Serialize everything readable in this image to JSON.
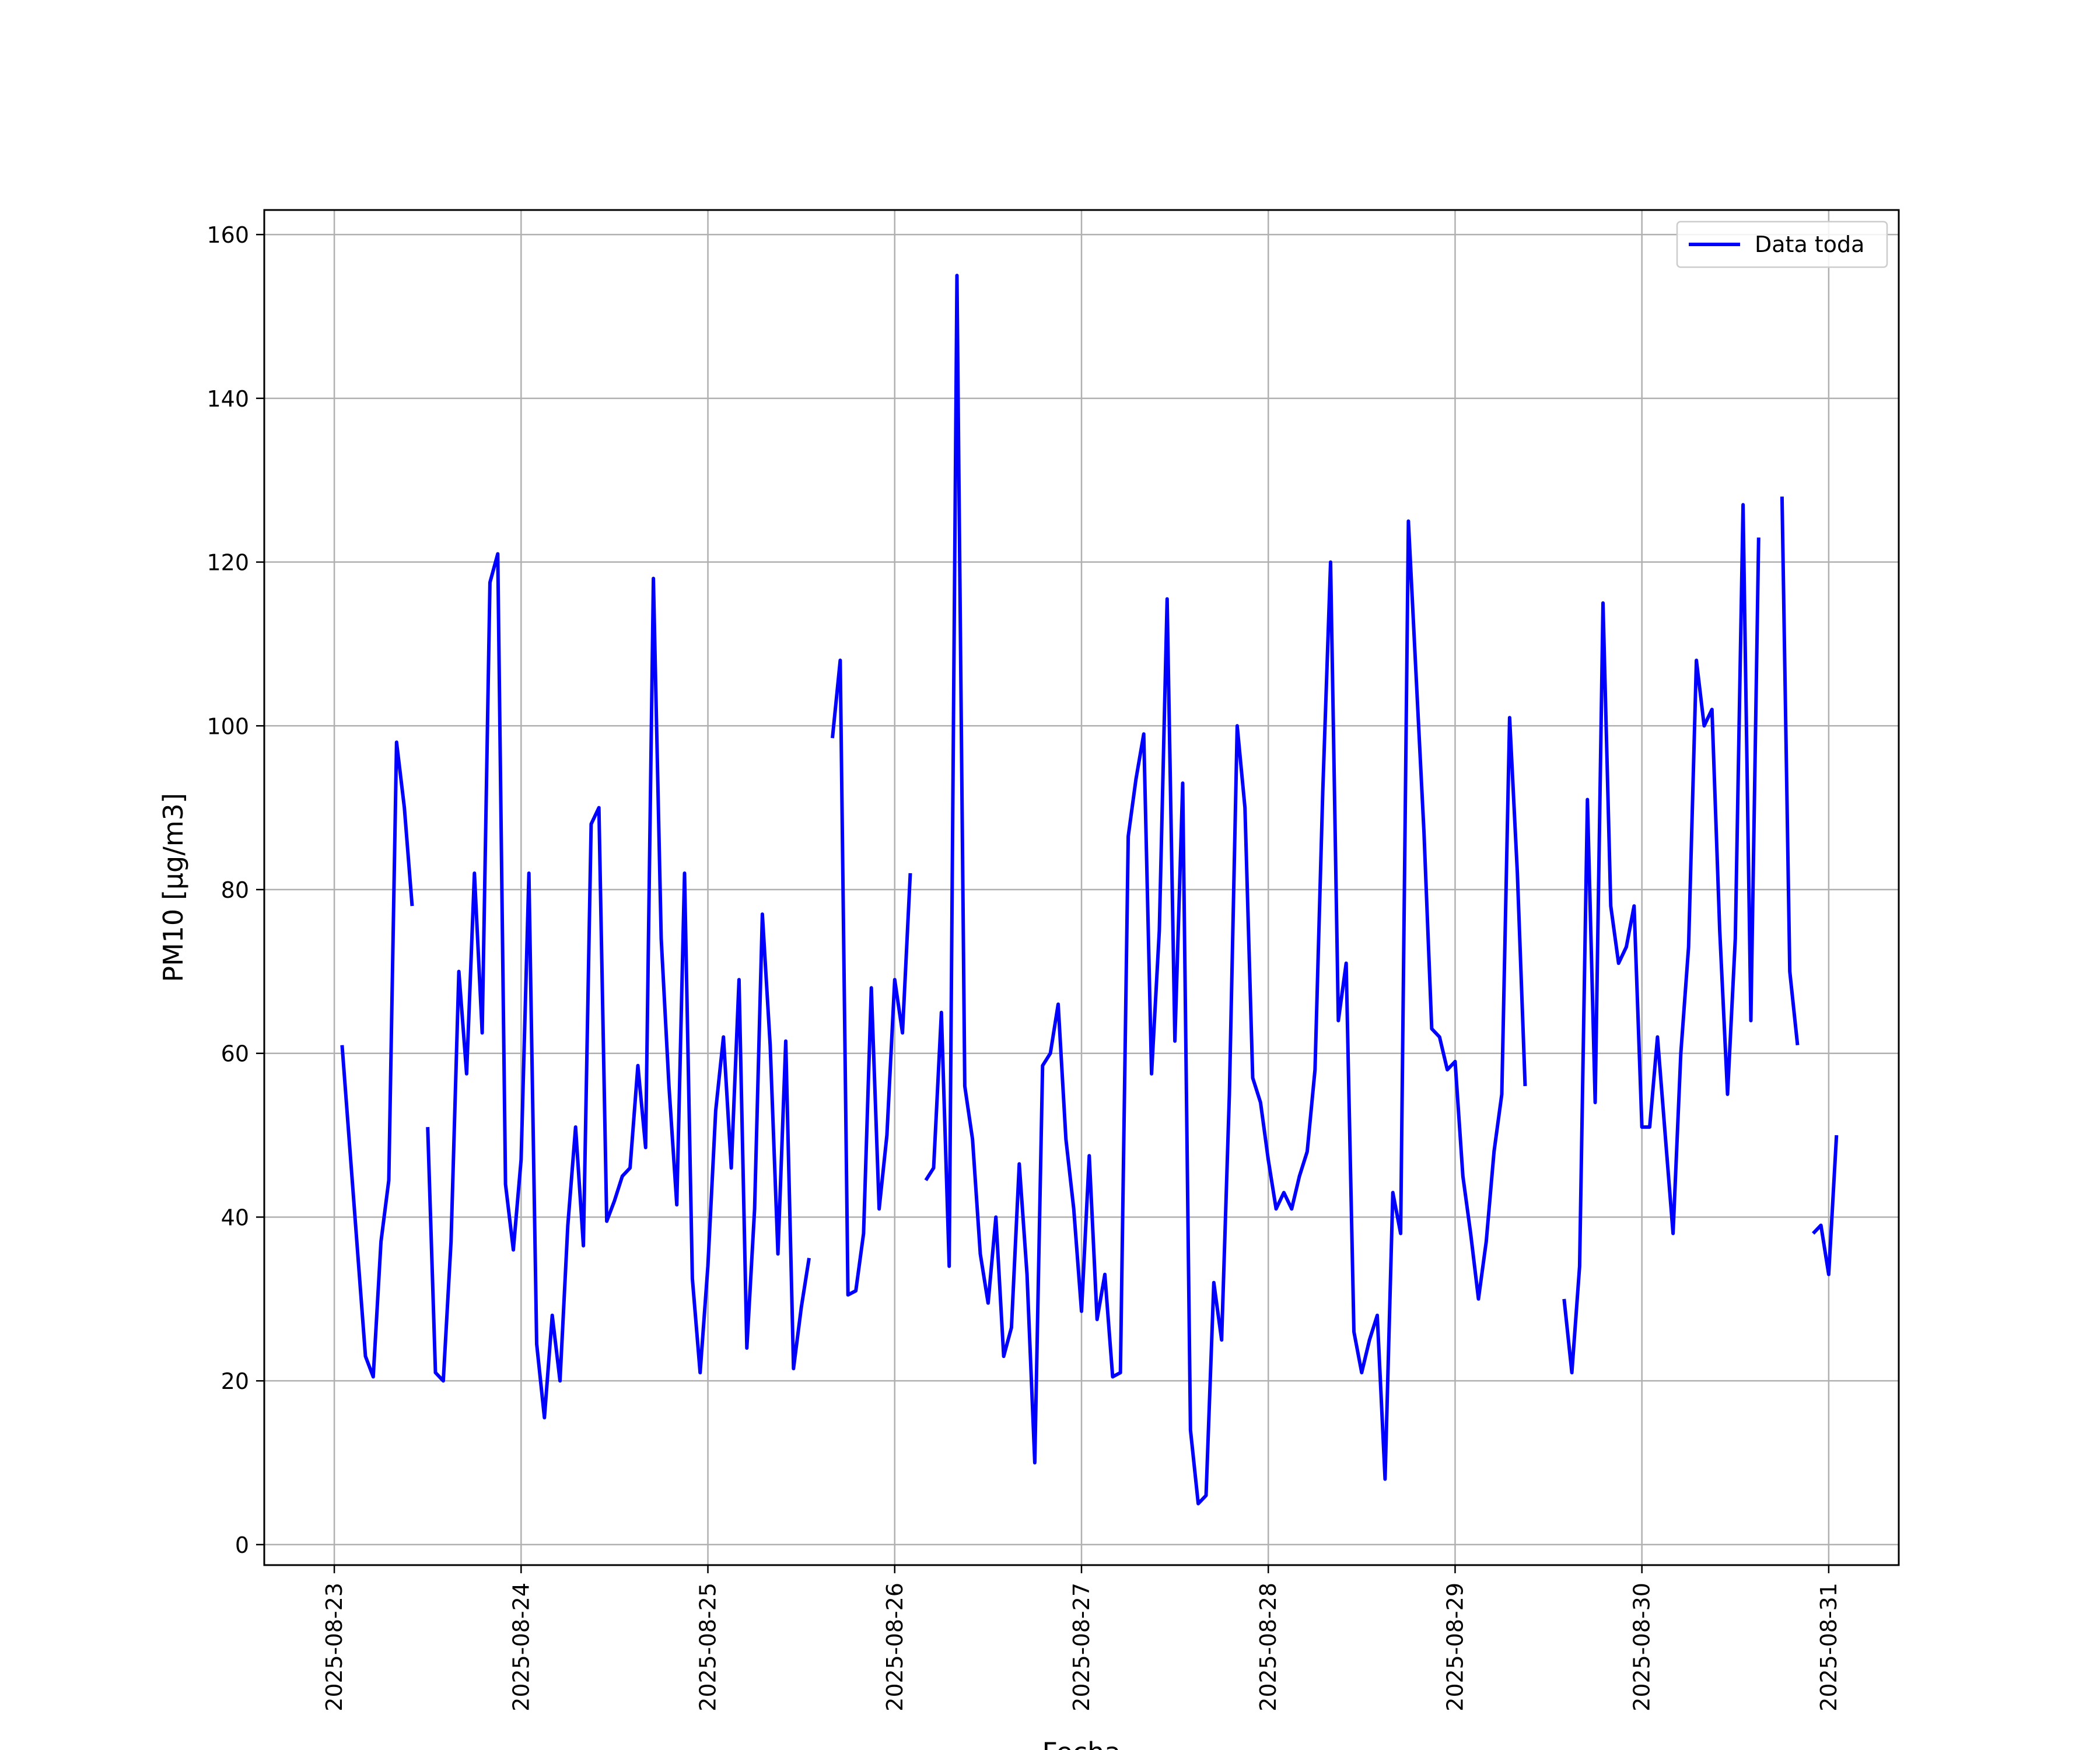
{
  "chart_data": {
    "type": "line",
    "title": "",
    "xlabel": "Fecha",
    "ylabel": "PM10 [μg/m3]",
    "xlim": [
      "2025-08-22 15:00",
      "2025-08-31 09:00"
    ],
    "ylim": [
      -2.5,
      163
    ],
    "grid": true,
    "legend_position": "top-right",
    "x_ticks": [
      "2025-08-23",
      "2025-08-24",
      "2025-08-25",
      "2025-08-26",
      "2025-08-27",
      "2025-08-28",
      "2025-08-29",
      "2025-08-30",
      "2025-08-31"
    ],
    "y_ticks": [
      0,
      20,
      40,
      60,
      80,
      100,
      120,
      140,
      160
    ],
    "colors": {
      "line": "#0000ff",
      "grid": "#b0b0b0"
    },
    "series": [
      {
        "name": "Data toda",
        "points": [
          [
            "2025-08-23 01:00",
            61
          ],
          [
            "2025-08-23 04:00",
            23
          ],
          [
            "2025-08-23 05:00",
            20.5
          ],
          [
            "2025-08-23 06:00",
            37
          ],
          [
            "2025-08-23 07:00",
            44.5
          ],
          [
            "2025-08-23 08:00",
            98
          ],
          [
            "2025-08-23 09:00",
            90
          ],
          [
            "2025-08-23 10:00",
            78
          ],
          [
            "2025-08-23 11:00",
            null
          ],
          [
            "2025-08-23 12:00",
            51
          ],
          [
            "2025-08-23 13:00",
            21
          ],
          [
            "2025-08-23 14:00",
            20
          ],
          [
            "2025-08-23 15:00",
            37
          ],
          [
            "2025-08-23 16:00",
            70
          ],
          [
            "2025-08-23 17:00",
            57.5
          ],
          [
            "2025-08-23 18:00",
            82
          ],
          [
            "2025-08-23 19:00",
            62.5
          ],
          [
            "2025-08-23 20:00",
            117.5
          ],
          [
            "2025-08-23 21:00",
            121
          ],
          [
            "2025-08-23 22:00",
            44
          ],
          [
            "2025-08-23 23:00",
            36
          ],
          [
            "2025-08-24 00:00",
            47
          ],
          [
            "2025-08-24 01:00",
            82
          ],
          [
            "2025-08-24 02:00",
            24.5
          ],
          [
            "2025-08-24 03:00",
            15.5
          ],
          [
            "2025-08-24 04:00",
            28
          ],
          [
            "2025-08-24 05:00",
            20
          ],
          [
            "2025-08-24 06:00",
            39
          ],
          [
            "2025-08-24 07:00",
            51
          ],
          [
            "2025-08-24 08:00",
            36.5
          ],
          [
            "2025-08-24 09:00",
            88
          ],
          [
            "2025-08-24 10:00",
            90
          ],
          [
            "2025-08-24 11:00",
            39.5
          ],
          [
            "2025-08-24 12:00",
            42
          ],
          [
            "2025-08-24 13:00",
            45
          ],
          [
            "2025-08-24 14:00",
            46
          ],
          [
            "2025-08-24 15:00",
            58.5
          ],
          [
            "2025-08-24 16:00",
            48.5
          ],
          [
            "2025-08-24 17:00",
            118
          ],
          [
            "2025-08-24 18:00",
            74
          ],
          [
            "2025-08-24 19:00",
            56
          ],
          [
            "2025-08-24 20:00",
            41.5
          ],
          [
            "2025-08-24 21:00",
            82
          ],
          [
            "2025-08-24 22:00",
            32.5
          ],
          [
            "2025-08-24 23:00",
            21
          ],
          [
            "2025-08-25 00:00",
            34
          ],
          [
            "2025-08-25 01:00",
            53
          ],
          [
            "2025-08-25 02:00",
            62
          ],
          [
            "2025-08-25 03:00",
            46
          ],
          [
            "2025-08-25 04:00",
            69
          ],
          [
            "2025-08-25 05:00",
            24
          ],
          [
            "2025-08-25 06:00",
            41
          ],
          [
            "2025-08-25 07:00",
            77
          ],
          [
            "2025-08-25 08:00",
            61
          ],
          [
            "2025-08-25 09:00",
            35.5
          ],
          [
            "2025-08-25 10:00",
            61.5
          ],
          [
            "2025-08-25 11:00",
            21.5
          ],
          [
            "2025-08-25 12:00",
            29
          ],
          [
            "2025-08-25 13:00",
            35
          ],
          [
            "2025-08-25 14:00",
            null
          ],
          [
            "2025-08-25 15:00",
            null
          ],
          [
            "2025-08-25 16:00",
            98.5
          ],
          [
            "2025-08-25 17:00",
            108
          ],
          [
            "2025-08-25 18:00",
            30.5
          ],
          [
            "2025-08-25 19:00",
            31
          ],
          [
            "2025-08-25 20:00",
            38
          ],
          [
            "2025-08-25 21:00",
            68
          ],
          [
            "2025-08-25 22:00",
            41
          ],
          [
            "2025-08-25 23:00",
            50
          ],
          [
            "2025-08-26 00:00",
            69
          ],
          [
            "2025-08-26 01:00",
            62.5
          ],
          [
            "2025-08-26 02:00",
            82
          ],
          [
            "2025-08-26 03:00",
            null
          ],
          [
            "2025-08-26 04:00",
            44.5
          ],
          [
            "2025-08-26 05:00",
            46
          ],
          [
            "2025-08-26 06:00",
            65
          ],
          [
            "2025-08-26 07:00",
            34
          ],
          [
            "2025-08-26 08:00",
            155
          ],
          [
            "2025-08-26 09:00",
            56
          ],
          [
            "2025-08-26 10:00",
            49.5
          ],
          [
            "2025-08-26 11:00",
            35.5
          ],
          [
            "2025-08-26 12:00",
            29.5
          ],
          [
            "2025-08-26 13:00",
            40
          ],
          [
            "2025-08-26 14:00",
            23
          ],
          [
            "2025-08-26 15:00",
            26.5
          ],
          [
            "2025-08-26 16:00",
            46.5
          ],
          [
            "2025-08-26 17:00",
            33
          ],
          [
            "2025-08-26 18:00",
            10
          ],
          [
            "2025-08-26 19:00",
            58.5
          ],
          [
            "2025-08-26 20:00",
            60
          ],
          [
            "2025-08-26 21:00",
            66
          ],
          [
            "2025-08-26 22:00",
            49.5
          ],
          [
            "2025-08-26 23:00",
            41
          ],
          [
            "2025-08-27 00:00",
            28.5
          ],
          [
            "2025-08-27 01:00",
            47.5
          ],
          [
            "2025-08-27 02:00",
            27.5
          ],
          [
            "2025-08-27 03:00",
            33
          ],
          [
            "2025-08-27 04:00",
            20.5
          ],
          [
            "2025-08-27 05:00",
            21
          ],
          [
            "2025-08-27 06:00",
            86.5
          ],
          [
            "2025-08-27 07:00",
            93.5
          ],
          [
            "2025-08-27 08:00",
            99
          ],
          [
            "2025-08-27 09:00",
            57.5
          ],
          [
            "2025-08-27 10:00",
            75
          ],
          [
            "2025-08-27 11:00",
            115.5
          ],
          [
            "2025-08-27 12:00",
            61.5
          ],
          [
            "2025-08-27 13:00",
            93
          ],
          [
            "2025-08-27 14:00",
            14
          ],
          [
            "2025-08-27 15:00",
            5
          ],
          [
            "2025-08-27 16:00",
            6
          ],
          [
            "2025-08-27 17:00",
            32
          ],
          [
            "2025-08-27 18:00",
            25
          ],
          [
            "2025-08-27 19:00",
            55
          ],
          [
            "2025-08-27 20:00",
            100
          ],
          [
            "2025-08-27 21:00",
            90
          ],
          [
            "2025-08-27 22:00",
            57
          ],
          [
            "2025-08-27 23:00",
            54
          ],
          [
            "2025-08-28 00:00",
            47
          ],
          [
            "2025-08-28 01:00",
            41
          ],
          [
            "2025-08-28 02:00",
            43
          ],
          [
            "2025-08-28 03:00",
            41
          ],
          [
            "2025-08-28 04:00",
            45
          ],
          [
            "2025-08-28 05:00",
            48
          ],
          [
            "2025-08-28 06:00",
            58
          ],
          [
            "2025-08-28 07:00",
            92
          ],
          [
            "2025-08-28 08:00",
            120
          ],
          [
            "2025-08-28 09:00",
            64
          ],
          [
            "2025-08-28 10:00",
            71
          ],
          [
            "2025-08-28 11:00",
            26
          ],
          [
            "2025-08-28 12:00",
            21
          ],
          [
            "2025-08-28 13:00",
            25
          ],
          [
            "2025-08-28 14:00",
            28
          ],
          [
            "2025-08-28 15:00",
            8
          ],
          [
            "2025-08-28 16:00",
            43
          ],
          [
            "2025-08-28 17:00",
            38
          ],
          [
            "2025-08-28 18:00",
            125
          ],
          [
            "2025-08-28 19:00",
            106
          ],
          [
            "2025-08-28 20:00",
            87
          ],
          [
            "2025-08-28 21:00",
            63
          ],
          [
            "2025-08-28 22:00",
            62
          ],
          [
            "2025-08-28 23:00",
            58
          ],
          [
            "2025-08-29 00:00",
            59
          ],
          [
            "2025-08-29 01:00",
            45
          ],
          [
            "2025-08-29 02:00",
            38
          ],
          [
            "2025-08-29 03:00",
            30
          ],
          [
            "2025-08-29 04:00",
            37
          ],
          [
            "2025-08-29 05:00",
            48
          ],
          [
            "2025-08-29 06:00",
            55
          ],
          [
            "2025-08-29 07:00",
            101
          ],
          [
            "2025-08-29 08:00",
            82
          ],
          [
            "2025-08-29 09:00",
            56
          ],
          [
            "2025-08-29 10:00",
            null
          ],
          [
            "2025-08-29 13:00",
            null
          ],
          [
            "2025-08-29 14:00",
            30
          ],
          [
            "2025-08-29 15:00",
            21
          ],
          [
            "2025-08-29 16:00",
            34
          ],
          [
            "2025-08-29 17:00",
            91
          ],
          [
            "2025-08-29 18:00",
            54
          ],
          [
            "2025-08-29 19:00",
            115
          ],
          [
            "2025-08-29 20:00",
            78
          ],
          [
            "2025-08-29 21:00",
            71
          ],
          [
            "2025-08-29 22:00",
            73
          ],
          [
            "2025-08-29 23:00",
            78
          ],
          [
            "2025-08-30 00:00",
            51
          ],
          [
            "2025-08-30 01:00",
            51
          ],
          [
            "2025-08-30 02:00",
            62
          ],
          [
            "2025-08-30 03:00",
            50
          ],
          [
            "2025-08-30 04:00",
            38
          ],
          [
            "2025-08-30 05:00",
            60
          ],
          [
            "2025-08-30 06:00",
            73
          ],
          [
            "2025-08-30 07:00",
            108
          ],
          [
            "2025-08-30 08:00",
            100
          ],
          [
            "2025-08-30 09:00",
            102
          ],
          [
            "2025-08-30 10:00",
            75
          ],
          [
            "2025-08-30 11:00",
            55
          ],
          [
            "2025-08-30 12:00",
            74
          ],
          [
            "2025-08-30 13:00",
            127
          ],
          [
            "2025-08-30 14:00",
            64
          ],
          [
            "2025-08-30 15:00",
            123
          ],
          [
            "2025-08-30 16:00",
            null
          ],
          [
            "2025-08-30 17:00",
            null
          ],
          [
            "2025-08-30 18:00",
            128
          ],
          [
            "2025-08-30 19:00",
            70
          ],
          [
            "2025-08-30 20:00",
            61
          ],
          [
            "2025-08-30 21:00",
            null
          ],
          [
            "2025-08-30 22:00",
            38
          ],
          [
            "2025-08-30 23:00",
            39
          ],
          [
            "2025-08-31 00:00",
            33
          ],
          [
            "2025-08-31 01:00",
            50
          ]
        ]
      }
    ]
  }
}
